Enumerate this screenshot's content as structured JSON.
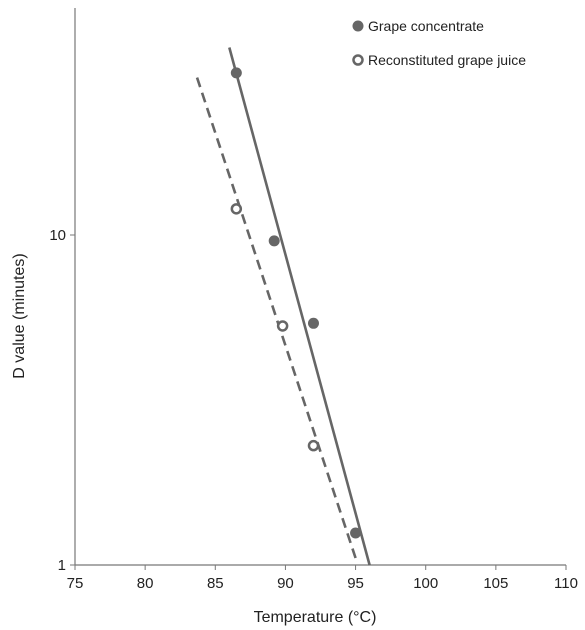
{
  "chart_data": {
    "type": "scatter",
    "title": "",
    "xlabel": "Temperature (°C)",
    "ylabel": "D value (minutes)",
    "xlim": [
      75,
      110
    ],
    "ylim": [
      1,
      40
    ],
    "y_scale": "log",
    "x_ticks": [
      "75",
      "80",
      "85",
      "90",
      "95",
      "100",
      "105",
      "110"
    ],
    "y_ticks": [
      "1",
      "10"
    ],
    "legend_position": "top-right",
    "grid": false,
    "series": [
      {
        "name": "Grape concentrate",
        "marker": "filled-circle",
        "line_style": "solid",
        "color": "#666666",
        "points": [
          {
            "x": 86.5,
            "y": 31
          },
          {
            "x": 89.2,
            "y": 9.6
          },
          {
            "x": 92,
            "y": 5.4
          },
          {
            "x": 95,
            "y": 1.25
          }
        ],
        "fit_line": [
          {
            "x": 86.0,
            "y": 37
          },
          {
            "x": 96.0,
            "y": 1
          }
        ]
      },
      {
        "name": "Reconstituted grape juice",
        "marker": "open-circle",
        "line_style": "dashed",
        "color": "#666666",
        "points": [
          {
            "x": 86.5,
            "y": 12
          },
          {
            "x": 89.8,
            "y": 5.3
          },
          {
            "x": 92,
            "y": 2.3
          }
        ],
        "fit_line": [
          {
            "x": 83.7,
            "y": 30
          },
          {
            "x": 95.0,
            "y": 1.05
          }
        ]
      }
    ]
  }
}
